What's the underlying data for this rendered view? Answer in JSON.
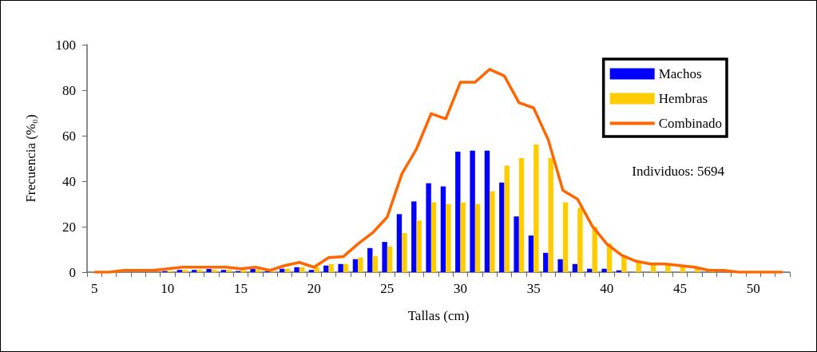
{
  "chart_data": {
    "type": "bar",
    "xlabel": "Tallas (cm)",
    "ylabel": "Frecuencia (%₀)",
    "categories": [
      "5",
      null,
      null,
      null,
      null,
      "10",
      null,
      null,
      null,
      null,
      "15",
      null,
      null,
      null,
      null,
      "20",
      null,
      null,
      null,
      null,
      "25",
      null,
      null,
      null,
      null,
      "30",
      null,
      null,
      null,
      null,
      "35",
      null,
      null,
      null,
      null,
      "40",
      null,
      null,
      null,
      null,
      "45",
      null,
      null,
      null,
      null,
      "50",
      null,
      null
    ],
    "series": [
      {
        "name": "Machos",
        "color": "#0000ff",
        "values": [
          0,
          0,
          0,
          0,
          0,
          0.5,
          1,
          1,
          1.4,
          1,
          0.5,
          1.4,
          0.5,
          1.5,
          2.2,
          1,
          2.9,
          3.6,
          5.7,
          10.6,
          13.3,
          25.5,
          31.1,
          39.1,
          37.7,
          53.0,
          53.4,
          53.4,
          39.4,
          24.5,
          16.1,
          8.5,
          5.7,
          3.6,
          1.5,
          1.5,
          0.8,
          0,
          0,
          0,
          0,
          0,
          0,
          0,
          0,
          0,
          0,
          0
        ]
      },
      {
        "name": "Hembras",
        "color": "#ffcc00",
        "values": [
          0,
          0,
          0,
          0,
          0,
          0.5,
          1,
          1,
          1,
          1,
          1,
          1,
          0.3,
          1.5,
          2.2,
          2.2,
          3.6,
          3.6,
          6.4,
          7.1,
          11.3,
          17.2,
          22.7,
          30.7,
          30.0,
          30.7,
          30.0,
          35.6,
          46.8,
          50.2,
          56.1,
          50.2,
          30.7,
          28.3,
          20.0,
          12.6,
          7.1,
          5.0,
          3.6,
          3.6,
          2.9,
          2.0,
          0.5,
          null,
          0,
          0,
          0,
          0
        ]
      },
      {
        "name": "Combinado",
        "type": "line",
        "color": "#ff6600",
        "values": [
          0,
          0,
          0.8,
          0.8,
          0.8,
          1.5,
          2.2,
          2.2,
          2.2,
          2.2,
          1.5,
          2.2,
          0.8,
          2.9,
          4.3,
          2.2,
          6.4,
          6.8,
          12.4,
          17.3,
          24.2,
          43.2,
          54.2,
          69.7,
          67.4,
          83.5,
          83.5,
          89.2,
          86.3,
          74.5,
          72.2,
          58.2,
          36.0,
          32.1,
          20.3,
          12.4,
          7.5,
          4.8,
          3.6,
          3.6,
          2.9,
          2.2,
          0.8,
          0.8,
          0,
          0,
          0,
          0
        ]
      }
    ],
    "ylim": [
      0,
      100
    ],
    "yticks": [
      0,
      20,
      40,
      60,
      80,
      100
    ],
    "grid": false,
    "legend": "top right",
    "marker": "none",
    "line_style": "solid",
    "annotations": [
      "Individuos: 5694"
    ]
  }
}
